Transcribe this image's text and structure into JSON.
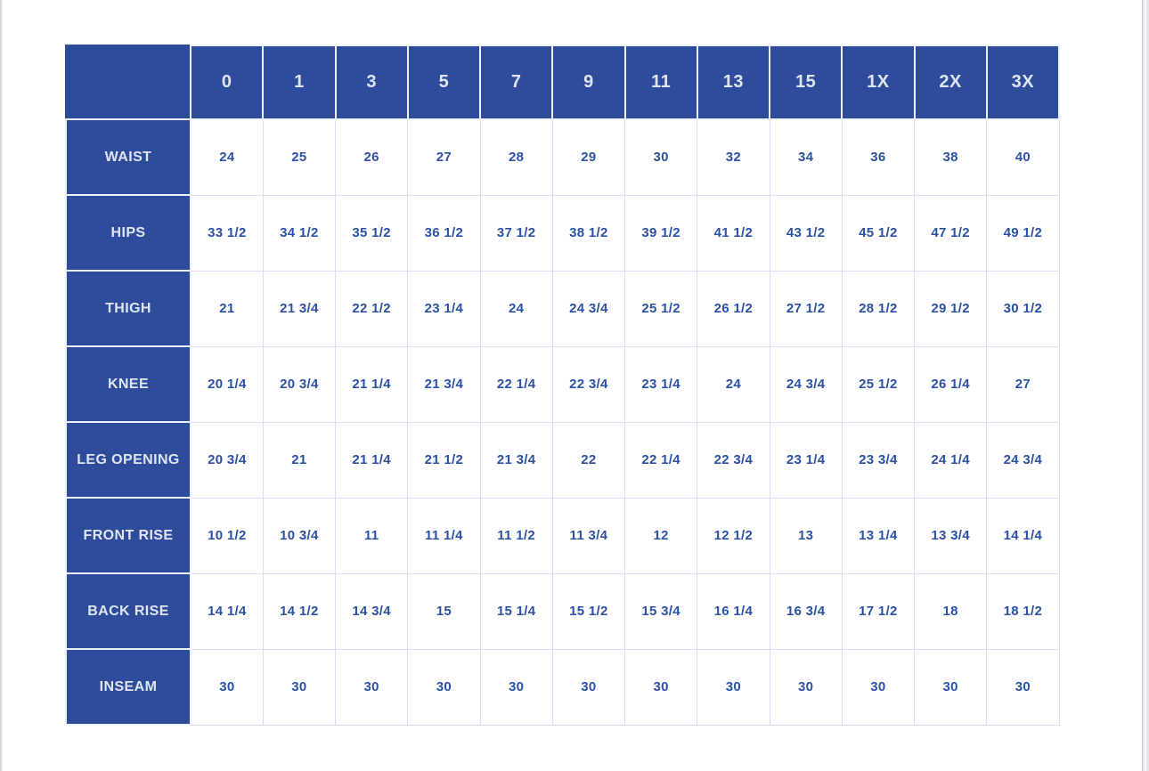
{
  "style": {
    "header_bg": "#2e4c9b",
    "header_text": "#dfe5f1",
    "value_text": "#2b51a7",
    "grid": "#d7e0f2",
    "page_bg": "#ffffff"
  },
  "chart_data": {
    "type": "table",
    "title": "",
    "corner_label": "",
    "columns": [
      "0",
      "1",
      "3",
      "5",
      "7",
      "9",
      "11",
      "13",
      "15",
      "1X",
      "2X",
      "3X"
    ],
    "rows": [
      {
        "label": "WAIST",
        "values": [
          "24",
          "25",
          "26",
          "27",
          "28",
          "29",
          "30",
          "32",
          "34",
          "36",
          "38",
          "40"
        ]
      },
      {
        "label": "HIPS",
        "values": [
          "33 1/2",
          "34 1/2",
          "35 1/2",
          "36 1/2",
          "37 1/2",
          "38 1/2",
          "39 1/2",
          "41 1/2",
          "43 1/2",
          "45 1/2",
          "47 1/2",
          "49 1/2"
        ]
      },
      {
        "label": "THIGH",
        "values": [
          "21",
          "21 3/4",
          "22 1/2",
          "23 1/4",
          "24",
          "24 3/4",
          "25 1/2",
          "26 1/2",
          "27 1/2",
          "28 1/2",
          "29 1/2",
          "30 1/2"
        ]
      },
      {
        "label": "KNEE",
        "values": [
          "20 1/4",
          "20 3/4",
          "21 1/4",
          "21 3/4",
          "22 1/4",
          "22 3/4",
          "23 1/4",
          "24",
          "24 3/4",
          "25 1/2",
          "26 1/4",
          "27"
        ]
      },
      {
        "label": "LEG OPENING",
        "values": [
          "20 3/4",
          "21",
          "21 1/4",
          "21 1/2",
          "21 3/4",
          "22",
          "22 1/4",
          "22 3/4",
          "23 1/4",
          "23 3/4",
          "24 1/4",
          "24 3/4"
        ]
      },
      {
        "label": "FRONT RISE",
        "values": [
          "10 1/2",
          "10 3/4",
          "11",
          "11 1/4",
          "11 1/2",
          "11 3/4",
          "12",
          "12 1/2",
          "13",
          "13 1/4",
          "13 3/4",
          "14 1/4"
        ]
      },
      {
        "label": "BACK RISE",
        "values": [
          "14 1/4",
          "14 1/2",
          "14 3/4",
          "15",
          "15 1/4",
          "15 1/2",
          "15 3/4",
          "16 1/4",
          "16 3/4",
          "17 1/2",
          "18",
          "18 1/2"
        ]
      },
      {
        "label": "INSEAM",
        "values": [
          "30",
          "30",
          "30",
          "30",
          "30",
          "30",
          "30",
          "30",
          "30",
          "30",
          "30",
          "30"
        ]
      }
    ]
  }
}
